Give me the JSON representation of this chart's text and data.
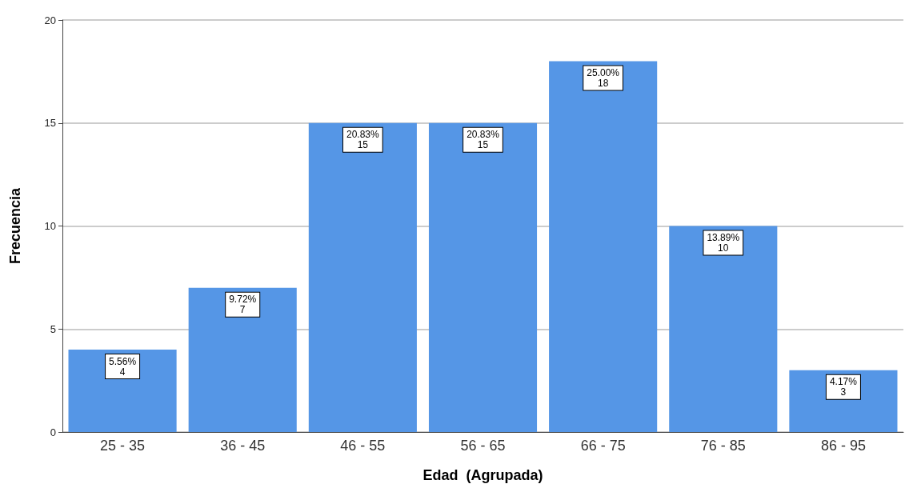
{
  "chart_data": {
    "type": "bar",
    "xlabel": "Edad  (Agrupada)",
    "ylabel": "Frecuencia",
    "categories": [
      "25 - 35",
      "36 - 45",
      "46 - 55",
      "56 - 65",
      "66 - 75",
      "76 - 85",
      "86 - 95"
    ],
    "values": [
      4,
      7,
      15,
      15,
      18,
      10,
      3
    ],
    "value_labels": [
      "5.56%\n4",
      "9.72%\n7",
      "20.83%\n15",
      "20.83%\n15",
      "25.00%\n18",
      "13.89%\n10",
      "4.17%\n3"
    ],
    "color": "#5596e6",
    "ylim": [
      0,
      20
    ],
    "yticks": [
      0,
      5,
      10,
      15,
      20
    ],
    "grid": "y"
  }
}
